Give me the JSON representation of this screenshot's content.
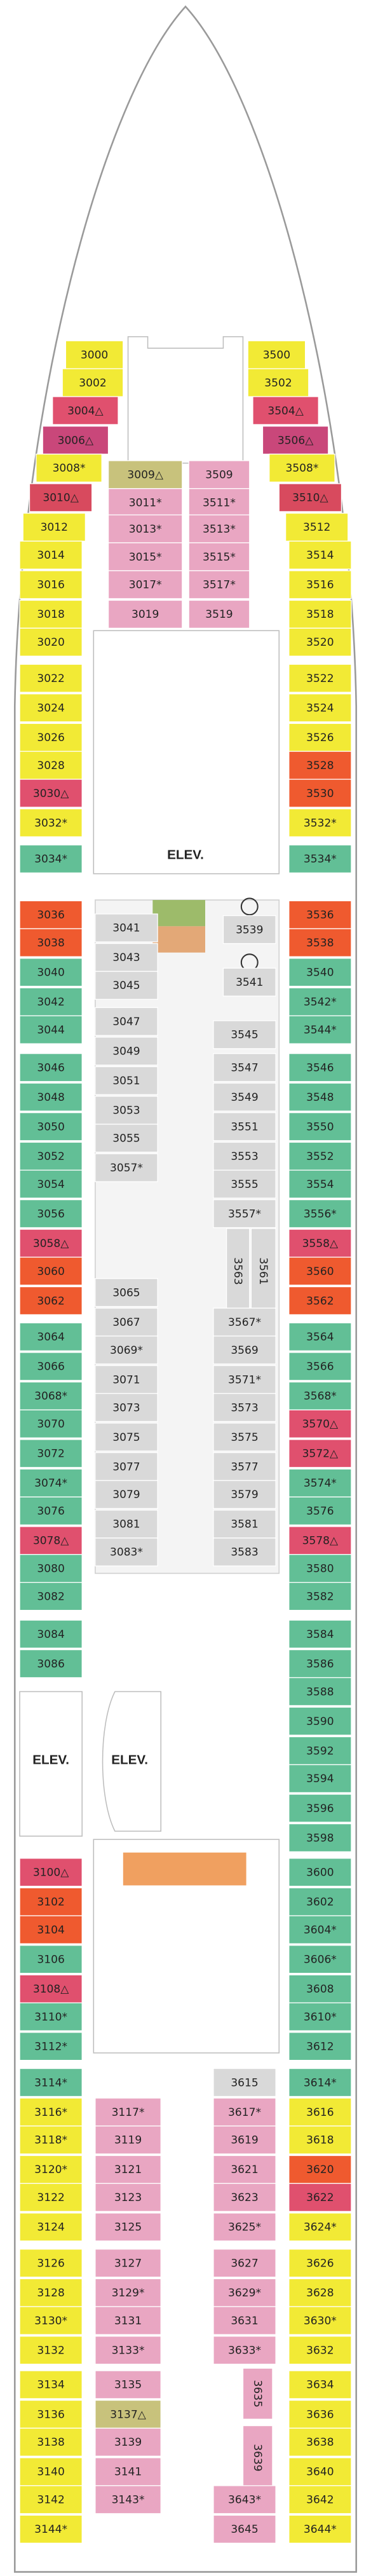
{
  "elevators": [
    "ELEV.",
    "ELEV.",
    "ELEV."
  ],
  "cabins": [
    {
      "label": "3000",
      "color": "#f2ea35"
    },
    {
      "label": "3002",
      "color": "#f2ea35"
    },
    {
      "label": "3004△",
      "color": "#e0506e"
    },
    {
      "label": "3006△",
      "color": "#c9477a"
    },
    {
      "label": "3008*",
      "color": "#f2ea35"
    },
    {
      "label": "3010△",
      "color": "#d84a5e"
    },
    {
      "label": "3012",
      "color": "#f2ea35"
    },
    {
      "label": "3014",
      "color": "#f2ea35"
    },
    {
      "label": "3016",
      "color": "#f2ea35"
    },
    {
      "label": "3018",
      "color": "#f2ea35"
    },
    {
      "label": "3020",
      "color": "#f2ea35"
    },
    {
      "label": "3022",
      "color": "#f2ea35"
    },
    {
      "label": "3024",
      "color": "#f2ea35"
    },
    {
      "label": "3026",
      "color": "#f2ea35"
    },
    {
      "label": "3028",
      "color": "#f2ea35"
    },
    {
      "label": "3030△",
      "color": "#e0506e"
    },
    {
      "label": "3032*",
      "color": "#f2ea35"
    },
    {
      "label": "3034*",
      "color": "#62bf96"
    },
    {
      "label": "3500",
      "color": "#f2ea35"
    },
    {
      "label": "3502",
      "color": "#f2ea35"
    },
    {
      "label": "3504△",
      "color": "#e0506e"
    },
    {
      "label": "3506△",
      "color": "#c9477a"
    },
    {
      "label": "3508*",
      "color": "#f2ea35"
    },
    {
      "label": "3510△",
      "color": "#d84a5e"
    },
    {
      "label": "3512",
      "color": "#f2ea35"
    },
    {
      "label": "3514",
      "color": "#f2ea35"
    },
    {
      "label": "3516",
      "color": "#f2ea35"
    },
    {
      "label": "3518",
      "color": "#f2ea35"
    },
    {
      "label": "3520",
      "color": "#f2ea35"
    },
    {
      "label": "3522",
      "color": "#f2ea35"
    },
    {
      "label": "3524",
      "color": "#f2ea35"
    },
    {
      "label": "3526",
      "color": "#f2ea35"
    },
    {
      "label": "3528",
      "color": "#ef5a2f"
    },
    {
      "label": "3530",
      "color": "#ef5a2f"
    },
    {
      "label": "3532*",
      "color": "#f2ea35"
    },
    {
      "label": "3534*",
      "color": "#62bf96"
    },
    {
      "label": "3009△",
      "color": "#c8c27c"
    },
    {
      "label": "3011*",
      "color": "#e9a6c2"
    },
    {
      "label": "3013*",
      "color": "#e9a6c2"
    },
    {
      "label": "3015*",
      "color": "#e9a6c2"
    },
    {
      "label": "3017*",
      "color": "#e9a6c2"
    },
    {
      "label": "3019",
      "color": "#e9a6c2"
    },
    {
      "label": "3509",
      "color": "#e9a6c2"
    },
    {
      "label": "3511*",
      "color": "#e9a6c2"
    },
    {
      "label": "3513*",
      "color": "#e9a6c2"
    },
    {
      "label": "3515*",
      "color": "#e9a6c2"
    },
    {
      "label": "3517*",
      "color": "#e9a6c2"
    },
    {
      "label": "3519",
      "color": "#e9a6c2"
    },
    {
      "label": "3036",
      "color": "#ef5a2f"
    },
    {
      "label": "3038",
      "color": "#ef5a2f"
    },
    {
      "label": "3040",
      "color": "#62bf96"
    },
    {
      "label": "3042",
      "color": "#62bf96"
    },
    {
      "label": "3044",
      "color": "#62bf96"
    },
    {
      "label": "3046",
      "color": "#62bf96"
    },
    {
      "label": "3048",
      "color": "#62bf96"
    },
    {
      "label": "3050",
      "color": "#62bf96"
    },
    {
      "label": "3052",
      "color": "#62bf96"
    },
    {
      "label": "3054",
      "color": "#62bf96"
    },
    {
      "label": "3056",
      "color": "#62bf96"
    },
    {
      "label": "3058△",
      "color": "#e0506e"
    },
    {
      "label": "3060",
      "color": "#ef5a2f"
    },
    {
      "label": "3062",
      "color": "#ef5a2f"
    },
    {
      "label": "3064",
      "color": "#62bf96"
    },
    {
      "label": "3066",
      "color": "#62bf96"
    },
    {
      "label": "3068*",
      "color": "#62bf96"
    },
    {
      "label": "3070",
      "color": "#62bf96"
    },
    {
      "label": "3072",
      "color": "#62bf96"
    },
    {
      "label": "3074*",
      "color": "#62bf96"
    },
    {
      "label": "3076",
      "color": "#62bf96"
    },
    {
      "label": "3078△",
      "color": "#e0506e"
    },
    {
      "label": "3080",
      "color": "#62bf96"
    },
    {
      "label": "3082",
      "color": "#62bf96"
    },
    {
      "label": "3084",
      "color": "#62bf96"
    },
    {
      "label": "3086",
      "color": "#62bf96"
    },
    {
      "label": "3100△",
      "color": "#e0506e"
    },
    {
      "label": "3102",
      "color": "#ef5a2f"
    },
    {
      "label": "3104",
      "color": "#ef5a2f"
    },
    {
      "label": "3106",
      "color": "#62bf96"
    },
    {
      "label": "3108△",
      "color": "#e0506e"
    },
    {
      "label": "3110*",
      "color": "#62bf96"
    },
    {
      "label": "3112*",
      "color": "#62bf96"
    },
    {
      "label": "3114*",
      "color": "#62bf96"
    },
    {
      "label": "3116*",
      "color": "#f2ea35"
    },
    {
      "label": "3118*",
      "color": "#f2ea35"
    },
    {
      "label": "3120*",
      "color": "#f2ea35"
    },
    {
      "label": "3122",
      "color": "#f2ea35"
    },
    {
      "label": "3124",
      "color": "#f2ea35"
    },
    {
      "label": "3126",
      "color": "#f2ea35"
    },
    {
      "label": "3128",
      "color": "#f2ea35"
    },
    {
      "label": "3130*",
      "color": "#f2ea35"
    },
    {
      "label": "3132",
      "color": "#f2ea35"
    },
    {
      "label": "3134",
      "color": "#f2ea35"
    },
    {
      "label": "3136",
      "color": "#f2ea35"
    },
    {
      "label": "3138",
      "color": "#f2ea35"
    },
    {
      "label": "3140",
      "color": "#f2ea35"
    },
    {
      "label": "3142",
      "color": "#f2ea35"
    },
    {
      "label": "3144*",
      "color": "#f2ea35"
    },
    {
      "label": "3536",
      "color": "#ef5a2f"
    },
    {
      "label": "3538",
      "color": "#ef5a2f"
    },
    {
      "label": "3540",
      "color": "#62bf96"
    },
    {
      "label": "3542*",
      "color": "#62bf96"
    },
    {
      "label": "3544*",
      "color": "#62bf96"
    },
    {
      "label": "3546",
      "color": "#62bf96"
    },
    {
      "label": "3548",
      "color": "#62bf96"
    },
    {
      "label": "3550",
      "color": "#62bf96"
    },
    {
      "label": "3552",
      "color": "#62bf96"
    },
    {
      "label": "3554",
      "color": "#62bf96"
    },
    {
      "label": "3556*",
      "color": "#62bf96"
    },
    {
      "label": "3558△",
      "color": "#e0506e"
    },
    {
      "label": "3560",
      "color": "#ef5a2f"
    },
    {
      "label": "3562",
      "color": "#ef5a2f"
    },
    {
      "label": "3564",
      "color": "#62bf96"
    },
    {
      "label": "3566",
      "color": "#62bf96"
    },
    {
      "label": "3568*",
      "color": "#62bf96"
    },
    {
      "label": "3570△",
      "color": "#e0506e"
    },
    {
      "label": "3572△",
      "color": "#e0506e"
    },
    {
      "label": "3574*",
      "color": "#62bf96"
    },
    {
      "label": "3576",
      "color": "#62bf96"
    },
    {
      "label": "3578△",
      "color": "#e0506e"
    },
    {
      "label": "3580",
      "color": "#62bf96"
    },
    {
      "label": "3582",
      "color": "#62bf96"
    },
    {
      "label": "3584",
      "color": "#62bf96"
    },
    {
      "label": "3586",
      "color": "#62bf96"
    },
    {
      "label": "3588",
      "color": "#62bf96"
    },
    {
      "label": "3590",
      "color": "#62bf96"
    },
    {
      "label": "3592",
      "color": "#62bf96"
    },
    {
      "label": "3594",
      "color": "#62bf96"
    },
    {
      "label": "3596",
      "color": "#62bf96"
    },
    {
      "label": "3598",
      "color": "#62bf96"
    },
    {
      "label": "3600",
      "color": "#62bf96"
    },
    {
      "label": "3602",
      "color": "#62bf96"
    },
    {
      "label": "3604*",
      "color": "#62bf96"
    },
    {
      "label": "3606*",
      "color": "#62bf96"
    },
    {
      "label": "3608",
      "color": "#62bf96"
    },
    {
      "label": "3610*",
      "color": "#62bf96"
    },
    {
      "label": "3612",
      "color": "#62bf96"
    },
    {
      "label": "3614*",
      "color": "#62bf96"
    },
    {
      "label": "3616",
      "color": "#f2ea35"
    },
    {
      "label": "3618",
      "color": "#f2ea35"
    },
    {
      "label": "3620",
      "color": "#ef5a2f"
    },
    {
      "label": "3622",
      "color": "#e0506e"
    },
    {
      "label": "3624*",
      "color": "#f2ea35"
    },
    {
      "label": "3626",
      "color": "#f2ea35"
    },
    {
      "label": "3628",
      "color": "#f2ea35"
    },
    {
      "label": "3630*",
      "color": "#f2ea35"
    },
    {
      "label": "3632",
      "color": "#f2ea35"
    },
    {
      "label": "3634",
      "color": "#f2ea35"
    },
    {
      "label": "3636",
      "color": "#f2ea35"
    },
    {
      "label": "3638",
      "color": "#f2ea35"
    },
    {
      "label": "3640",
      "color": "#f2ea35"
    },
    {
      "label": "3642",
      "color": "#f2ea35"
    },
    {
      "label": "3644*",
      "color": "#f2ea35"
    },
    {
      "label": "3041",
      "color": "#d9d9d9"
    },
    {
      "label": "3043",
      "color": "#d9d9d9"
    },
    {
      "label": "3045",
      "color": "#d9d9d9"
    },
    {
      "label": "3047",
      "color": "#d9d9d9"
    },
    {
      "label": "3049",
      "color": "#d9d9d9"
    },
    {
      "label": "3051",
      "color": "#d9d9d9"
    },
    {
      "label": "3053",
      "color": "#d9d9d9"
    },
    {
      "label": "3055",
      "color": "#d9d9d9"
    },
    {
      "label": "3057*",
      "color": "#d9d9d9"
    },
    {
      "label": "3065",
      "color": "#d9d9d9"
    },
    {
      "label": "3067",
      "color": "#d9d9d9"
    },
    {
      "label": "3069*",
      "color": "#d9d9d9"
    },
    {
      "label": "3071",
      "color": "#d9d9d9"
    },
    {
      "label": "3073",
      "color": "#d9d9d9"
    },
    {
      "label": "3075",
      "color": "#d9d9d9"
    },
    {
      "label": "3077",
      "color": "#d9d9d9"
    },
    {
      "label": "3079",
      "color": "#d9d9d9"
    },
    {
      "label": "3081",
      "color": "#d9d9d9"
    },
    {
      "label": "3083*",
      "color": "#d9d9d9"
    },
    {
      "label": "3539",
      "color": "#d9d9d9"
    },
    {
      "label": "3541",
      "color": "#d9d9d9"
    },
    {
      "label": "3545",
      "color": "#d9d9d9"
    },
    {
      "label": "3547",
      "color": "#d9d9d9"
    },
    {
      "label": "3549",
      "color": "#d9d9d9"
    },
    {
      "label": "3551",
      "color": "#d9d9d9"
    },
    {
      "label": "3553",
      "color": "#d9d9d9"
    },
    {
      "label": "3555",
      "color": "#d9d9d9"
    },
    {
      "label": "3557*",
      "color": "#d9d9d9"
    },
    {
      "label": "3563",
      "color": "#d9d9d9"
    },
    {
      "label": "3561",
      "color": "#d9d9d9"
    },
    {
      "label": "3567*",
      "color": "#d9d9d9"
    },
    {
      "label": "3569",
      "color": "#d9d9d9"
    },
    {
      "label": "3571*",
      "color": "#d9d9d9"
    },
    {
      "label": "3573",
      "color": "#d9d9d9"
    },
    {
      "label": "3575",
      "color": "#d9d9d9"
    },
    {
      "label": "3577",
      "color": "#d9d9d9"
    },
    {
      "label": "3579",
      "color": "#d9d9d9"
    },
    {
      "label": "3581",
      "color": "#d9d9d9"
    },
    {
      "label": "3583",
      "color": "#d9d9d9"
    },
    {
      "label": "3117*",
      "color": "#e9a6c2"
    },
    {
      "label": "3119",
      "color": "#e9a6c2"
    },
    {
      "label": "3121",
      "color": "#e9a6c2"
    },
    {
      "label": "3123",
      "color": "#e9a6c2"
    },
    {
      "label": "3125",
      "color": "#e9a6c2"
    },
    {
      "label": "3127",
      "color": "#e9a6c2"
    },
    {
      "label": "3129*",
      "color": "#e9a6c2"
    },
    {
      "label": "3131",
      "color": "#e9a6c2"
    },
    {
      "label": "3133*",
      "color": "#e9a6c2"
    },
    {
      "label": "3135",
      "color": "#e9a6c2"
    },
    {
      "label": "3137△",
      "color": "#c8c27c"
    },
    {
      "label": "3139",
      "color": "#e9a6c2"
    },
    {
      "label": "3141",
      "color": "#e9a6c2"
    },
    {
      "label": "3143*",
      "color": "#e9a6c2"
    },
    {
      "label": "3615",
      "color": "#d9d9d9"
    },
    {
      "label": "3617*",
      "color": "#e9a6c2"
    },
    {
      "label": "3619",
      "color": "#e9a6c2"
    },
    {
      "label": "3621",
      "color": "#e9a6c2"
    },
    {
      "label": "3623",
      "color": "#e9a6c2"
    },
    {
      "label": "3625*",
      "color": "#e9a6c2"
    },
    {
      "label": "3627",
      "color": "#e9a6c2"
    },
    {
      "label": "3629*",
      "color": "#e9a6c2"
    },
    {
      "label": "3631",
      "color": "#e9a6c2"
    },
    {
      "label": "3633*",
      "color": "#e9a6c2"
    },
    {
      "label": "3635",
      "color": "#e9a6c2"
    },
    {
      "label": "3639",
      "color": "#e9a6c2"
    },
    {
      "label": "3643*",
      "color": "#e9a6c2"
    },
    {
      "label": "3645",
      "color": "#e9a6c2"
    }
  ]
}
